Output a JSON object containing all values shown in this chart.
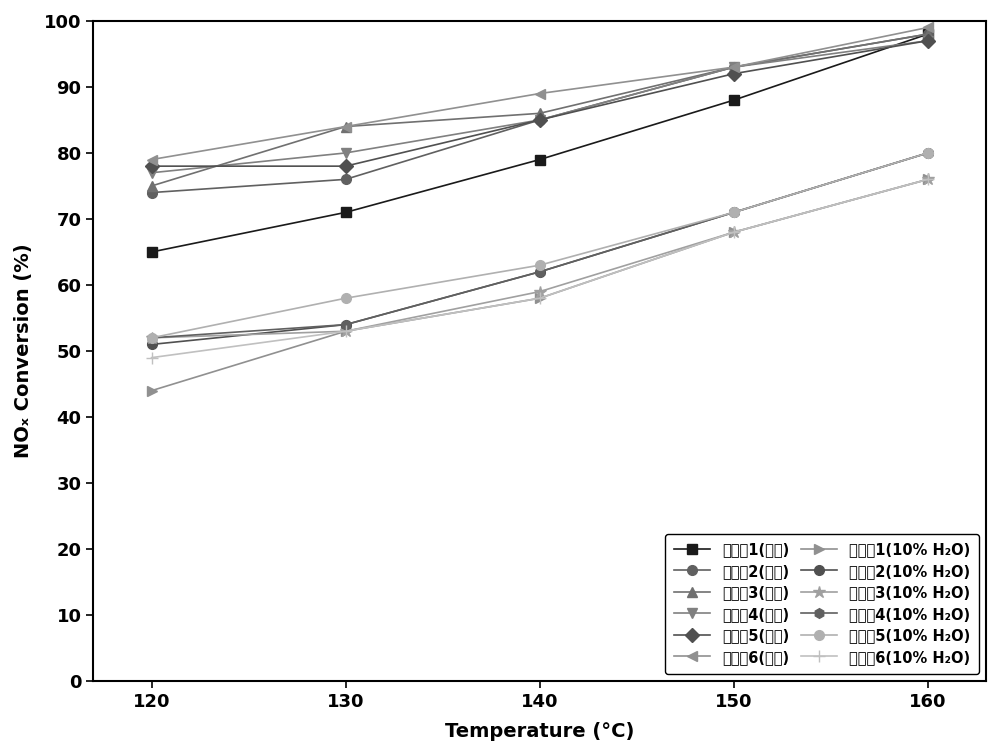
{
  "temperatures": [
    120,
    130,
    140,
    150,
    160
  ],
  "series_wushui": {
    "labels": [
      "实施例1(无水)",
      "实施例2(无水)",
      "实施例3(无水)",
      "实施例4(无水)",
      "实施例5(无水)",
      "实施例6(无水)"
    ],
    "values": [
      [
        65,
        71,
        79,
        88,
        98
      ],
      [
        74,
        76,
        85,
        93,
        98
      ],
      [
        75,
        84,
        86,
        93,
        98
      ],
      [
        77,
        80,
        85,
        93,
        97
      ],
      [
        78,
        78,
        85,
        92,
        97
      ],
      [
        79,
        84,
        89,
        93,
        99
      ]
    ],
    "colors": [
      "#1a1a1a",
      "#606060",
      "#707070",
      "#808080",
      "#505050",
      "#909090"
    ],
    "markers": [
      "s",
      "o",
      "^",
      "v",
      "D",
      "<"
    ],
    "markersizes": [
      7,
      7,
      7,
      7,
      7,
      7
    ],
    "linewidths": [
      1.2,
      1.2,
      1.2,
      1.2,
      1.2,
      1.2
    ]
  },
  "series_water": {
    "labels": [
      "实施例1(10% H₂O)",
      "实施例2(10% H₂O)",
      "实施例3(10% H₂O)",
      "实施例4(10% H₂O)",
      "实施例5(10% H₂O)",
      "实施例6(10% H₂O)"
    ],
    "values": [
      [
        44,
        53,
        58,
        68,
        76
      ],
      [
        51,
        54,
        62,
        71,
        80
      ],
      [
        52,
        53,
        59,
        68,
        76
      ],
      [
        52,
        54,
        62,
        71,
        80
      ],
      [
        52,
        58,
        63,
        71,
        80
      ],
      [
        49,
        53,
        58,
        68,
        76
      ]
    ],
    "colors": [
      "#909090",
      "#505050",
      "#a0a0a0",
      "#606060",
      "#b0b0b0",
      "#c0c0c0"
    ],
    "markers": [
      ">",
      "o",
      "*",
      "h",
      "o",
      "+"
    ],
    "markersizes": [
      7,
      7,
      9,
      7,
      7,
      9
    ],
    "linewidths": [
      1.2,
      1.2,
      1.2,
      1.2,
      1.2,
      1.2
    ]
  },
  "xlabel": "Temperature (°C)",
  "ylabel": "NOₓ Conversion (%)",
  "xlim": [
    117,
    163
  ],
  "ylim": [
    0,
    100
  ],
  "yticks": [
    0,
    10,
    20,
    30,
    40,
    50,
    60,
    70,
    80,
    90,
    100
  ],
  "xticks": [
    120,
    130,
    140,
    150,
    160
  ],
  "legend_fontsize": 10.5,
  "axis_fontsize": 14,
  "tick_fontsize": 13
}
